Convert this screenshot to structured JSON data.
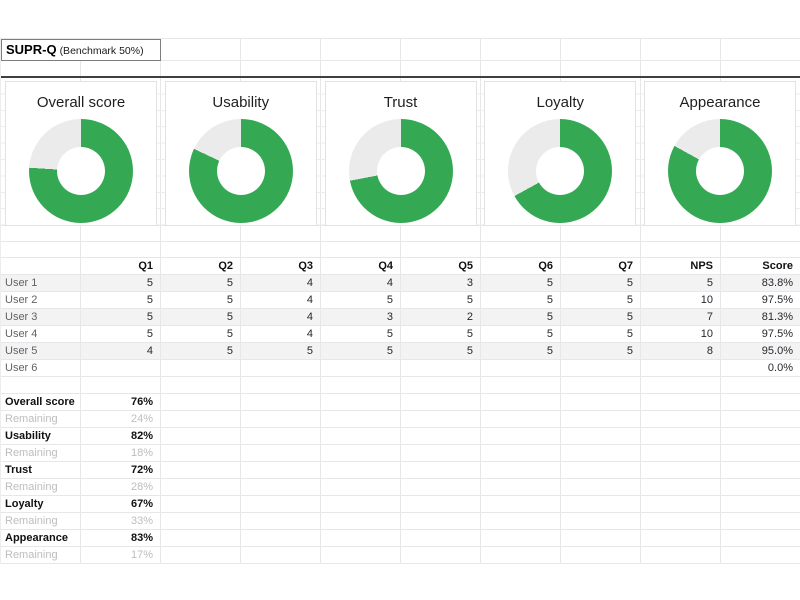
{
  "title": {
    "main": "SUPR-Q",
    "benchmark": "(Benchmark 50%)"
  },
  "colors": {
    "green": "#34a853",
    "remaining": "#ebebeb"
  },
  "charts": [
    {
      "label": "Overall score",
      "percent": 76
    },
    {
      "label": "Usability",
      "percent": 82
    },
    {
      "label": "Trust",
      "percent": 72
    },
    {
      "label": "Loyalty",
      "percent": 67
    },
    {
      "label": "Appearance",
      "percent": 83
    }
  ],
  "chart_data": [
    {
      "type": "pie",
      "title": "Overall score",
      "labels": [
        "Overall score",
        "Remaining"
      ],
      "values": [
        76,
        24
      ],
      "colors": [
        "#34a853",
        "#ebebeb"
      ],
      "donut": true
    },
    {
      "type": "pie",
      "title": "Usability",
      "labels": [
        "Usability",
        "Remaining"
      ],
      "values": [
        82,
        18
      ],
      "colors": [
        "#34a853",
        "#ebebeb"
      ],
      "donut": true
    },
    {
      "type": "pie",
      "title": "Trust",
      "labels": [
        "Trust",
        "Remaining"
      ],
      "values": [
        72,
        28
      ],
      "colors": [
        "#34a853",
        "#ebebeb"
      ],
      "donut": true
    },
    {
      "type": "pie",
      "title": "Loyalty",
      "labels": [
        "Loyalty",
        "Remaining"
      ],
      "values": [
        67,
        33
      ],
      "colors": [
        "#34a853",
        "#ebebeb"
      ],
      "donut": true
    },
    {
      "type": "pie",
      "title": "Appearance",
      "labels": [
        "Appearance",
        "Remaining"
      ],
      "values": [
        83,
        17
      ],
      "colors": [
        "#34a853",
        "#ebebeb"
      ],
      "donut": true
    }
  ],
  "table": {
    "headers": [
      "",
      "Q1",
      "Q2",
      "Q3",
      "Q4",
      "Q5",
      "Q6",
      "Q7",
      "NPS",
      "Score"
    ],
    "rows": [
      {
        "label": "User 1",
        "values": [
          "5",
          "5",
          "4",
          "4",
          "3",
          "5",
          "5",
          "5",
          "83.8%"
        ],
        "shaded": true
      },
      {
        "label": "User 2",
        "values": [
          "5",
          "5",
          "4",
          "5",
          "5",
          "5",
          "5",
          "10",
          "97.5%"
        ],
        "shaded": false
      },
      {
        "label": "User 3",
        "values": [
          "5",
          "5",
          "4",
          "3",
          "2",
          "5",
          "5",
          "7",
          "81.3%"
        ],
        "shaded": true
      },
      {
        "label": "User 4",
        "values": [
          "5",
          "5",
          "4",
          "5",
          "5",
          "5",
          "5",
          "10",
          "97.5%"
        ],
        "shaded": false
      },
      {
        "label": "User 5",
        "values": [
          "4",
          "5",
          "5",
          "5",
          "5",
          "5",
          "5",
          "8",
          "95.0%"
        ],
        "shaded": true
      },
      {
        "label": "User 6",
        "values": [
          "",
          "",
          "",
          "",
          "",
          "",
          "",
          "",
          "0.0%"
        ],
        "shaded": false
      }
    ]
  },
  "summary": [
    {
      "label": "Overall score",
      "value": "76%",
      "muted": false
    },
    {
      "label": "Remaining",
      "value": "24%",
      "muted": true
    },
    {
      "label": "Usability",
      "value": "82%",
      "muted": false
    },
    {
      "label": "Remaining",
      "value": "18%",
      "muted": true
    },
    {
      "label": "Trust",
      "value": "72%",
      "muted": false
    },
    {
      "label": "Remaining",
      "value": "28%",
      "muted": true
    },
    {
      "label": "Loyalty",
      "value": "67%",
      "muted": false
    },
    {
      "label": "Remaining",
      "value": "33%",
      "muted": true
    },
    {
      "label": "Appearance",
      "value": "83%",
      "muted": false
    },
    {
      "label": "Remaining",
      "value": "17%",
      "muted": true
    }
  ]
}
